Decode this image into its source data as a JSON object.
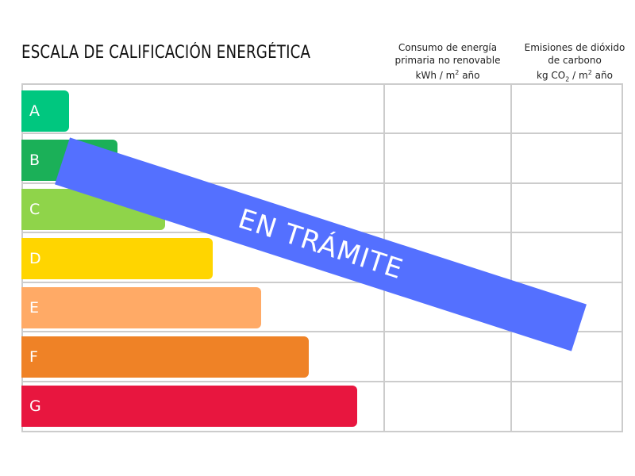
{
  "title": "ESCALA DE CALIFICACIÓN ENERGÉTICA",
  "columns": {
    "consumo": {
      "line1": "Consumo de energía",
      "line2": "primaria no renovable",
      "unit_a": "kWh / m",
      "unit_sup": "2",
      "unit_b": " año"
    },
    "emisiones": {
      "line1": "Emisiones de dióxido",
      "line2": "de carbono",
      "unit_a": "kg CO",
      "unit_sub": "2",
      "unit_b": " / m",
      "unit_sup": "2",
      "unit_c": " año"
    }
  },
  "ratings": [
    {
      "label": "A",
      "color": "#00c77f"
    },
    {
      "label": "B",
      "color": "#1bb058"
    },
    {
      "label": "C",
      "color": "#8fd44a"
    },
    {
      "label": "D",
      "color": "#ffd500"
    },
    {
      "label": "E",
      "color": "#ffaa66"
    },
    {
      "label": "F",
      "color": "#ef8226"
    },
    {
      "label": "G",
      "color": "#e8163f"
    }
  ],
  "stamp": {
    "text": "EN TRÁMITE",
    "color": "#5470ff"
  }
}
